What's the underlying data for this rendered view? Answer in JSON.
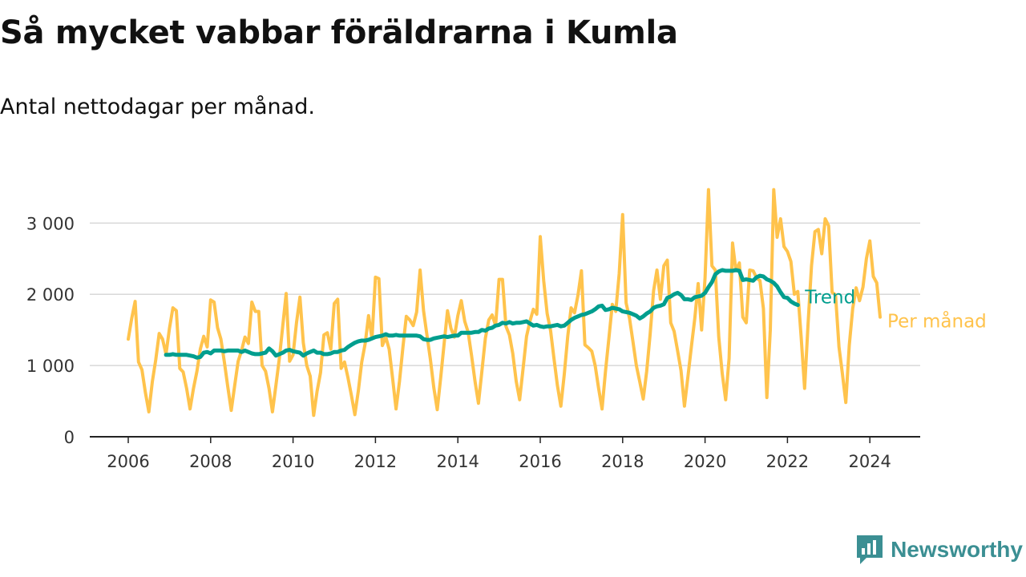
{
  "title": "Så mycket vabbar föräldrarna i Kumla",
  "subtitle": "Antal nettodagar per månad.",
  "brand": {
    "name": "Newsworthy",
    "icon": "bar-chart-speech-bubble-icon",
    "color": "#3b8f93"
  },
  "chart_data": {
    "type": "line",
    "title": "Så mycket vabbar föräldrarna i Kumla",
    "subtitle": "Antal nettodagar per månad.",
    "xlabel": "",
    "ylabel": "",
    "x_ticks": [
      "2006",
      "2008",
      "2010",
      "2012",
      "2014",
      "2016",
      "2018",
      "2020",
      "2022",
      "2024"
    ],
    "y_ticks": [
      0,
      1000,
      2000,
      3000
    ],
    "y_tick_labels": [
      "0",
      "1 000",
      "2 000",
      "3 000"
    ],
    "xlim": [
      2006,
      2024.42
    ],
    "ylim": [
      0,
      3600
    ],
    "grid": true,
    "legend": "inline labels at line ends, right",
    "series": [
      {
        "name": "Trend",
        "color": "#009e8e",
        "start": "2006-12",
        "values": [
          1150,
          1150,
          1160,
          1150,
          1150,
          1150,
          1150,
          1140,
          1130,
          1110,
          1120,
          1180,
          1190,
          1170,
          1210,
          1210,
          1210,
          1200,
          1210,
          1210,
          1210,
          1210,
          1190,
          1210,
          1190,
          1170,
          1160,
          1160,
          1170,
          1180,
          1240,
          1200,
          1140,
          1160,
          1180,
          1210,
          1220,
          1200,
          1190,
          1180,
          1140,
          1170,
          1190,
          1210,
          1180,
          1180,
          1160,
          1160,
          1170,
          1190,
          1190,
          1210,
          1220,
          1260,
          1290,
          1320,
          1340,
          1350,
          1350,
          1360,
          1380,
          1400,
          1410,
          1420,
          1440,
          1420,
          1420,
          1430,
          1420,
          1420,
          1420,
          1420,
          1420,
          1420,
          1410,
          1370,
          1360,
          1360,
          1380,
          1390,
          1400,
          1410,
          1400,
          1410,
          1420,
          1420,
          1460,
          1460,
          1460,
          1460,
          1470,
          1470,
          1500,
          1490,
          1520,
          1530,
          1560,
          1570,
          1600,
          1590,
          1610,
          1590,
          1600,
          1600,
          1610,
          1620,
          1590,
          1560,
          1570,
          1550,
          1540,
          1550,
          1550,
          1560,
          1570,
          1550,
          1560,
          1600,
          1640,
          1670,
          1690,
          1710,
          1720,
          1740,
          1760,
          1790,
          1830,
          1840,
          1780,
          1790,
          1810,
          1800,
          1790,
          1760,
          1750,
          1740,
          1720,
          1700,
          1660,
          1690,
          1730,
          1760,
          1810,
          1830,
          1840,
          1860,
          1950,
          1970,
          2000,
          2020,
          1990,
          1930,
          1930,
          1920,
          1960,
          1970,
          1980,
          2020,
          2100,
          2170,
          2280,
          2320,
          2340,
          2330,
          2330,
          2330,
          2340,
          2330,
          2200,
          2210,
          2200,
          2190,
          2240,
          2260,
          2250,
          2210,
          2190,
          2160,
          2110,
          2030,
          1960,
          1950,
          1900,
          1870,
          1850
        ]
      },
      {
        "name": "Per månad",
        "color": "#ffc34c",
        "start": "2006-01",
        "values": [
          1370,
          1660,
          1900,
          1050,
          940,
          620,
          350,
          770,
          1080,
          1450,
          1370,
          1160,
          1520,
          1810,
          1770,
          960,
          910,
          680,
          390,
          680,
          920,
          1230,
          1410,
          1260,
          1920,
          1890,
          1530,
          1370,
          1050,
          700,
          370,
          720,
          1060,
          1210,
          1400,
          1310,
          1890,
          1760,
          1760,
          1000,
          920,
          680,
          350,
          720,
          1100,
          1560,
          2010,
          1060,
          1150,
          1600,
          1960,
          1320,
          1000,
          850,
          300,
          640,
          900,
          1430,
          1460,
          1230,
          1870,
          1930,
          960,
          1050,
          830,
          580,
          310,
          640,
          1050,
          1310,
          1700,
          1380,
          2240,
          2220,
          1280,
          1400,
          1230,
          820,
          390,
          780,
          1260,
          1690,
          1640,
          1560,
          1750,
          2340,
          1770,
          1430,
          1090,
          690,
          380,
          830,
          1310,
          1770,
          1520,
          1400,
          1700,
          1910,
          1620,
          1470,
          1140,
          780,
          470,
          920,
          1380,
          1640,
          1710,
          1560,
          2210,
          2210,
          1550,
          1430,
          1170,
          780,
          520,
          960,
          1410,
          1620,
          1790,
          1720,
          2810,
          2190,
          1730,
          1490,
          1100,
          720,
          430,
          880,
          1410,
          1810,
          1740,
          1990,
          2330,
          1290,
          1250,
          1200,
          1000,
          680,
          390,
          920,
          1390,
          1860,
          1760,
          2290,
          3120,
          1880,
          1660,
          1340,
          1000,
          770,
          530,
          920,
          1440,
          2050,
          2340,
          1930,
          2400,
          2480,
          1600,
          1480,
          1210,
          930,
          430,
          840,
          1260,
          1660,
          2150,
          1500,
          2230,
          3470,
          2400,
          2340,
          1400,
          890,
          520,
          1100,
          2720,
          2330,
          2440,
          1680,
          1600,
          2340,
          2330,
          2230,
          2190,
          1800,
          550,
          1500,
          3470,
          2800,
          3060,
          2670,
          2600,
          2460,
          2000,
          2040,
          1400,
          680,
          1580,
          2400,
          2880,
          2910,
          2570,
          3060,
          2960,
          2030,
          1990,
          1260,
          890,
          480,
          1280,
          1800,
          2090,
          1910,
          2100,
          2500,
          2750,
          2250,
          2160,
          1680
        ]
      }
    ]
  }
}
